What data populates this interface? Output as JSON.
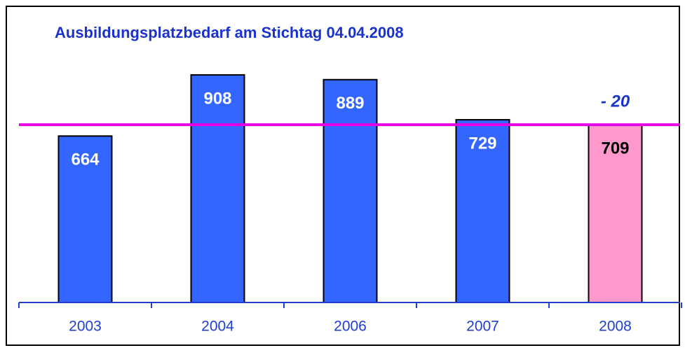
{
  "chart_data": {
    "type": "bar",
    "title": "Ausbildungsplatzbedarf am Stichtag 04.04.2008",
    "categories": [
      "2003",
      "2004",
      "2006",
      "2007",
      "2008"
    ],
    "values": [
      664,
      908,
      889,
      729,
      709
    ],
    "colors": [
      "#3366ff",
      "#3366ff",
      "#3366ff",
      "#3366ff",
      "#ff99cc"
    ],
    "label_colors": [
      "#ffffff",
      "#ffffff",
      "#ffffff",
      "#ffffff",
      "#000000"
    ],
    "ylim": [
      0,
      1000
    ],
    "reference_line": {
      "value": 709,
      "color": "#e600e6"
    },
    "annotation": "- 20"
  }
}
